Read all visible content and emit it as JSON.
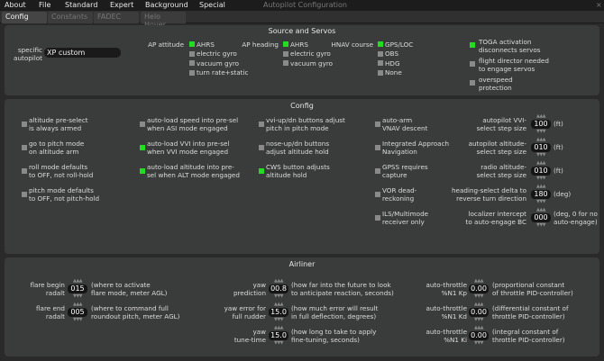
{
  "menu": [
    "About",
    "File",
    "Standard",
    "Expert",
    "Background",
    "Special"
  ],
  "window_title": "Autopilot Configuration",
  "close": "×",
  "tabs": [
    {
      "label": "Config",
      "active": true
    },
    {
      "label": "Constants"
    },
    {
      "label": "FADEC"
    },
    {
      "label": "Helo Hover"
    }
  ],
  "colors": {
    "checked": "#22dd22",
    "unchecked": "#8a8a8a"
  },
  "source": {
    "title": "Source and Servos",
    "specific_label": "specific\nautopilot",
    "specific_value": "XP custom",
    "groups": [
      {
        "label": "AP attitude",
        "options": [
          {
            "t": "AHRS",
            "on": true
          },
          {
            "t": "electric gyro"
          },
          {
            "t": "vacuum gyro"
          },
          {
            "t": "turn rate+static"
          }
        ]
      },
      {
        "label": "AP heading",
        "options": [
          {
            "t": "AHRS",
            "on": true
          },
          {
            "t": "electric gyro"
          },
          {
            "t": "vacuum gyro"
          }
        ]
      },
      {
        "label": "HNAV course",
        "options": [
          {
            "t": "GPS/LOC",
            "on": true
          },
          {
            "t": "OBS"
          },
          {
            "t": "HDG"
          },
          {
            "t": "None"
          }
        ]
      }
    ],
    "servo_checks": [
      {
        "t": "TOGA activation\ndisconnects servos",
        "on": true
      },
      {
        "t": "flight director needed\nto engage servos"
      },
      {
        "t": "overspeed\nprotection"
      }
    ]
  },
  "config": {
    "title": "Config",
    "columns": [
      [
        {
          "t": "altitude pre-select\nis always armed"
        },
        {
          "t": "go to pitch mode\non altitude arm"
        },
        {
          "t": "roll mode defaults\nto OFF, not roll-hold"
        },
        {
          "t": "pitch mode defaults\nto OFF, not pitch-hold"
        }
      ],
      [
        {
          "t": "auto-load speed into pre-sel\nwhen ASI mode engaged"
        },
        {
          "t": "auto-load VVI into pre-sel\nwhen VVI mode engaged",
          "on": true
        },
        {
          "t": "auto-load altitude into pre-\nsel when ALT mode engaged",
          "on": true
        }
      ],
      [
        {
          "t": "vvi-up/dn buttons adjust\npitch in pitch mode"
        },
        {
          "t": "nose-up/dn buttons\nadjust altitude hold"
        },
        {
          "t": "CWS button adjusts\naltitude hold",
          "on": true
        }
      ],
      [
        {
          "t": "auto-arm\nVNAV descent"
        },
        {
          "t": "Integrated Approach\nNavigation"
        },
        {
          "t": "GPSS requires\ncapture"
        },
        {
          "t": "VOR dead-\nreckoning"
        },
        {
          "t": "ILS/Multimode\nreceiver only"
        }
      ]
    ],
    "steps": [
      {
        "label": "autopilot VVI-\nselect step size",
        "value": "100",
        "unit": "(ft)"
      },
      {
        "label": "autopilot altitude-\nselect step size",
        "value": "010",
        "unit": "(ft)"
      },
      {
        "label": "radio altitude-\nselect step size",
        "value": "010",
        "unit": "(ft)"
      },
      {
        "label": "heading-select delta to\nreverse turn direction",
        "value": "180",
        "unit": "(deg)"
      },
      {
        "label": "localizer intercept\nto auto-engage BC",
        "value": "000",
        "unit": "(deg, 0 for no\nauto-engage)"
      }
    ]
  },
  "airliner": {
    "title": "Airliner",
    "columns": [
      [
        {
          "label": "flare begin\nradalt",
          "value": "015",
          "desc": "(where to activate\nflare mode, meter AGL)"
        },
        {
          "label": "flare end\nradalt",
          "value": "005",
          "desc": "(where to command full\nroundout pitch, meter AGL)"
        }
      ],
      [
        {
          "label": "yaw\nprediction",
          "value": "00.8",
          "desc": "(how far into the future to look\nto anticipate reaction, seconds)"
        },
        {
          "label": "yaw error for\nfull rudder",
          "value": "15.0",
          "desc": "(how much error will result\nin full deflection, degrees)"
        },
        {
          "label": "yaw\ntune-time",
          "value": "15.0",
          "desc": "(how long to take to apply\nfine-tuning, seconds)"
        }
      ],
      [
        {
          "label": "auto-throttle\n%N1 Kp",
          "value": "0.00",
          "desc": "(proportional constant\nof throttle PID-controller)"
        },
        {
          "label": "auto-throttle\n%N1 Kd",
          "value": "0.00",
          "desc": "(differential constant of\nthrottle PID-controller)"
        },
        {
          "label": "auto-throttle\n%N1 Ki",
          "value": "0.00",
          "desc": "(integral constant of\nthrottle PID-controller)"
        }
      ]
    ]
  },
  "spinner_glyphs": {
    "up": "▲▲▲",
    "down": "▼▼▼"
  }
}
